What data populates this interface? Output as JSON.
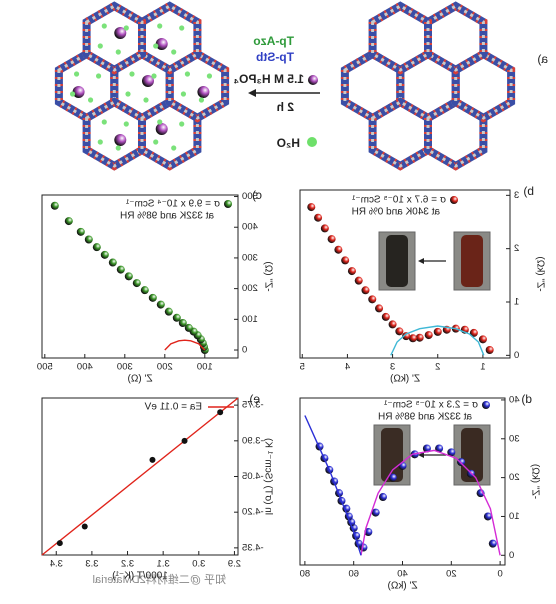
{
  "scheme": {
    "label": "a)",
    "reagent_1": "Tp-Azo",
    "reagent_2": "Tp-Stb",
    "acid": "1.5 M H₃PO₄",
    "time": "2 h",
    "water": "H₂O"
  },
  "watermark": "知乎 @二维材料2DMaterial",
  "chart_data": [
    {
      "type": "scatter",
      "label": "b)",
      "xlabel": "Z' (kΩ)",
      "ylabel": "-Z'' (kΩ)",
      "xlim": [
        0.4,
        5.05
      ],
      "xticks": [
        1,
        2,
        3,
        4,
        5
      ],
      "ylim": [
        -0.05,
        3.1
      ],
      "yticks": [
        0,
        1,
        2,
        3
      ],
      "annotation": "at 340K and 0% RH",
      "series": [
        {
          "name": "σ = 6.7 x 10⁻⁵ Scm⁻¹",
          "color": "#e0241b",
          "marker": "sphere",
          "x": [
            0.85,
            1.0,
            1.2,
            1.4,
            1.6,
            1.8,
            2.0,
            2.2,
            2.4,
            2.55,
            2.7,
            2.85,
            3.0,
            3.15,
            3.3,
            3.45,
            3.6,
            3.75,
            3.9,
            4.05,
            4.2,
            4.35,
            4.5,
            4.65,
            4.8
          ],
          "values": [
            0.1,
            0.3,
            0.42,
            0.48,
            0.5,
            0.48,
            0.44,
            0.38,
            0.33,
            0.32,
            0.36,
            0.45,
            0.58,
            0.72,
            0.88,
            1.05,
            1.22,
            1.4,
            1.58,
            1.78,
            1.98,
            2.18,
            2.38,
            2.58,
            2.78
          ]
        },
        {
          "type": "line",
          "color": "#3fb8d6",
          "x": [
            0.98,
            1.1,
            1.3,
            1.6,
            2.0,
            2.4,
            2.7,
            2.9,
            3.04
          ],
          "values": [
            0,
            0.25,
            0.4,
            0.5,
            0.55,
            0.5,
            0.4,
            0.25,
            0
          ]
        }
      ]
    },
    {
      "type": "scatter",
      "label": "c)",
      "xlabel": "Z' (Ω)",
      "ylabel": "-Z'' (Ω)",
      "xlim": [
        17,
        507
      ],
      "xticks": [
        100,
        200,
        300,
        400,
        500
      ],
      "ylim": [
        -26,
        505
      ],
      "yticks": [
        0,
        100,
        200,
        300,
        400,
        500
      ],
      "annotation": "at 332K and 98% RH",
      "series": [
        {
          "name": "σ = 9.9 x 10⁻⁴ Scm⁻¹",
          "color": "#3d9a2a",
          "marker": "sphere",
          "x": [
            100,
            102,
            105,
            110,
            118,
            128,
            140,
            155,
            170,
            190,
            210,
            230,
            250,
            270,
            290,
            310,
            330,
            350,
            370,
            390,
            410,
            440,
            475
          ],
          "values": [
            0,
            10,
            22,
            35,
            48,
            60,
            72,
            88,
            105,
            125,
            148,
            170,
            195,
            218,
            240,
            262,
            285,
            310,
            335,
            360,
            385,
            420,
            470
          ]
        },
        {
          "type": "line",
          "color": "#e0241b",
          "x": [
            100,
            115,
            135,
            150,
            165,
            185,
            200
          ],
          "values": [
            0,
            20,
            30,
            32,
            30,
            20,
            0
          ]
        }
      ]
    },
    {
      "type": "scatter",
      "label": "d)",
      "xlabel": "Z' (kΩ)",
      "ylabel": "-Z'' (kΩ)",
      "xlim": [
        -2,
        82
      ],
      "xticks": [
        0,
        20,
        40,
        60,
        80
      ],
      "ylim": [
        -2.5,
        40.5
      ],
      "yticks": [
        0,
        10,
        20,
        30,
        40
      ],
      "annotation": "at 332K and 98% RH",
      "series": [
        {
          "name": "σ = 2.3 x 10⁻⁵ Scm⁻¹",
          "color": "#2b2fd6",
          "marker": "sphere",
          "x": [
            3,
            5,
            8,
            12,
            16,
            20,
            25,
            30,
            35,
            40,
            44,
            48,
            51,
            54,
            56,
            58,
            59,
            60,
            61,
            62,
            63,
            65,
            66,
            68,
            70,
            72,
            74
          ],
          "values": [
            3,
            10,
            16,
            21,
            24,
            26.5,
            27.5,
            27.5,
            26,
            23,
            20,
            15,
            11,
            6,
            2,
            3,
            5,
            7,
            8.5,
            10,
            12,
            14,
            16,
            19,
            22,
            25,
            28
          ]
        },
        {
          "type": "line",
          "color": "#d42bd6",
          "x": [
            0,
            4,
            10,
            18,
            27,
            36,
            44,
            50,
            55,
            57
          ],
          "values": [
            0,
            12,
            20,
            25,
            27,
            26,
            22,
            16,
            7,
            0
          ]
        },
        {
          "type": "line",
          "color": "#2b2fd6",
          "x": [
            57,
            60,
            65,
            70,
            75,
            80
          ],
          "values": [
            0,
            6,
            14,
            22,
            29,
            36
          ]
        }
      ]
    },
    {
      "type": "scatter",
      "label": "e)",
      "xlabel": "1000/T (K⁻¹)",
      "ylabel": "ln (σT) (Scm⁻¹ K)",
      "xlim": [
        2.89,
        3.44
      ],
      "xticks": [
        2.9,
        {
          "value": 3.0,
          "label": "3.0"
        },
        3.1,
        3.2,
        3.3,
        3.4
      ],
      "ylim": [
        -4.38,
        -3.72
      ],
      "yticks": [
        -3.75,
        {
          "value": -3.9,
          "label": "-3.90"
        },
        -4.05,
        {
          "value": -4.2,
          "label": "-4.20"
        },
        -4.35
      ],
      "series": [
        {
          "name": "Ea = 0.11 eV",
          "type": "line",
          "color": "#e0241b",
          "x": [
            2.89,
            3.44
          ],
          "values": [
            -3.72,
            -4.38
          ]
        },
        {
          "color": "#111111",
          "marker": "dot",
          "x": [
            3.39,
            3.32,
            3.13,
            3.04,
            2.94
          ],
          "values": [
            -4.33,
            -4.26,
            -3.98,
            -3.9,
            -3.78
          ]
        }
      ]
    }
  ]
}
